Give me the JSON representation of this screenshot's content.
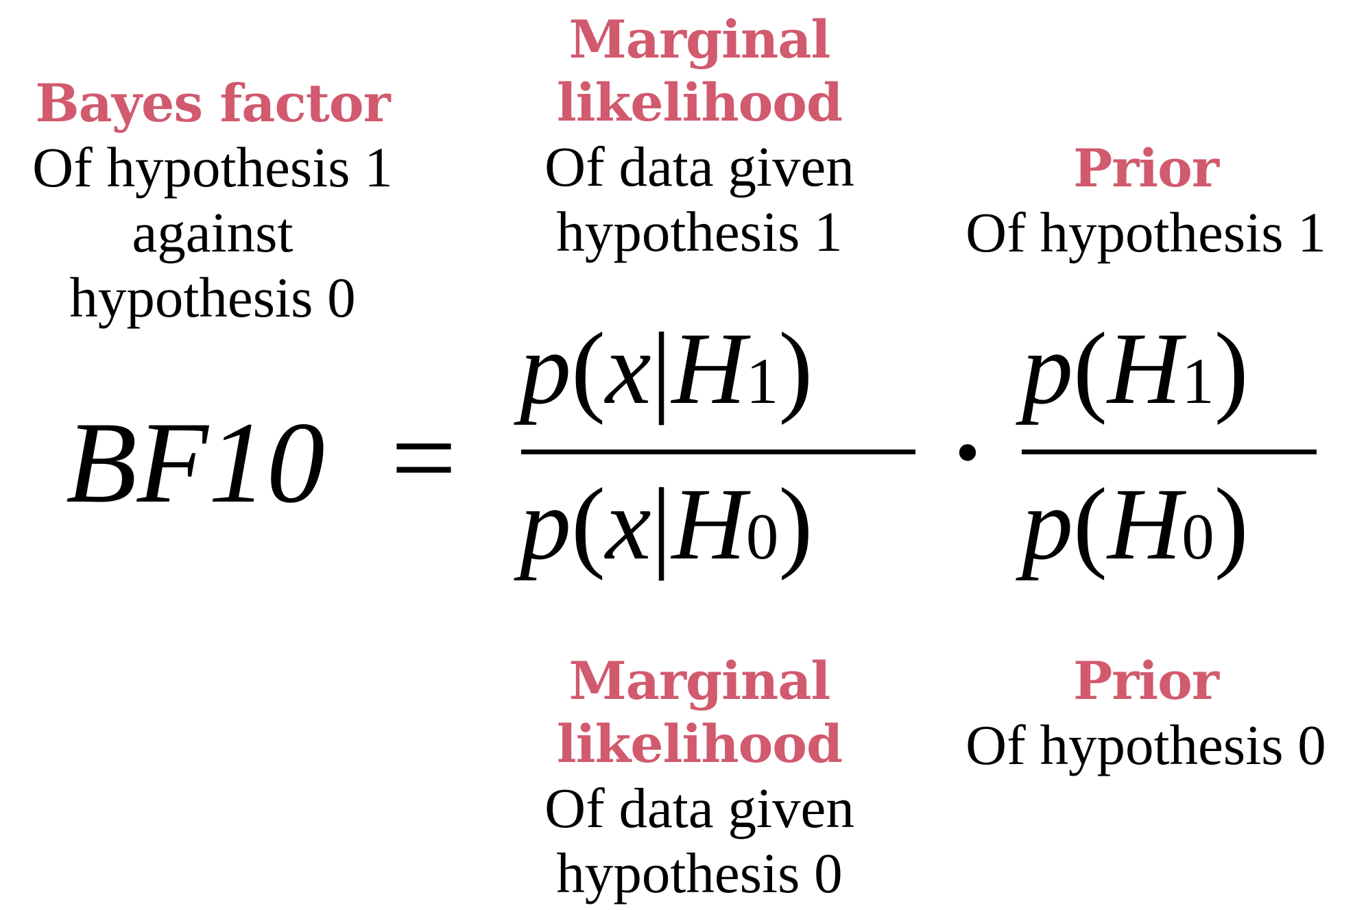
{
  "annotations": {
    "bayes_factor": {
      "heading": "Bayes factor",
      "lines": [
        "Of hypothesis 1",
        "against",
        "hypothesis 0"
      ]
    },
    "marginal_likelihood_top": {
      "heading_lines": [
        "Marginal",
        "likelihood"
      ],
      "lines": [
        "Of data given",
        "hypothesis 1"
      ]
    },
    "prior_top": {
      "heading": "Prior",
      "lines": [
        "Of hypothesis 1"
      ]
    },
    "marginal_likelihood_bottom": {
      "heading_lines": [
        "Marginal",
        "likelihood"
      ],
      "lines": [
        "Of data given",
        "hypothesis 0"
      ]
    },
    "prior_bottom": {
      "heading": "Prior",
      "lines": [
        "Of hypothesis 0"
      ]
    }
  },
  "formula": {
    "lhs": "BF10",
    "equals": "=",
    "dot": "·",
    "likelihood_numerator": {
      "p": "p",
      "open": "(",
      "x": "x",
      "bar": "|",
      "H": "H",
      "sub": "1",
      "close": ")"
    },
    "likelihood_denominator": {
      "p": "p",
      "open": "(",
      "x": "x",
      "bar": "|",
      "H": "H",
      "sub": "0",
      "close": ")"
    },
    "prior_numerator": {
      "p": "p",
      "open": "(",
      "H": "H",
      "sub": "1",
      "close": ")"
    },
    "prior_denominator": {
      "p": "p",
      "open": "(",
      "H": "H",
      "sub": "0",
      "close": ")"
    }
  },
  "colors": {
    "heading": "#d15a6e",
    "text": "#000000"
  }
}
